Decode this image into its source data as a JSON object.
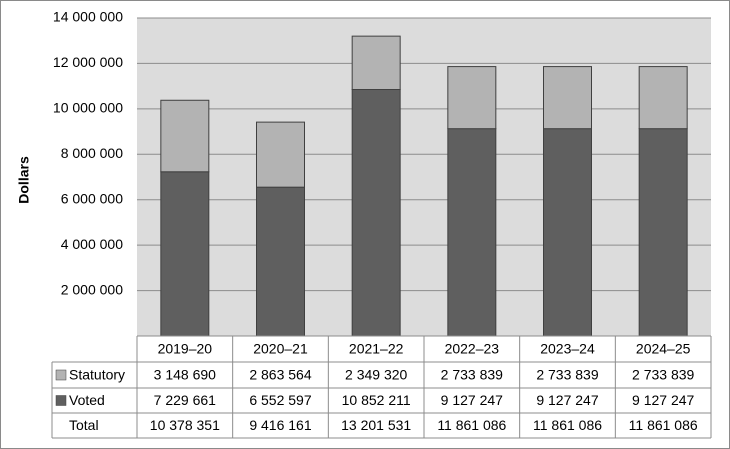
{
  "chart_data": {
    "type": "stacked-bar",
    "y_label": "Dollars",
    "categories": [
      "2019–20",
      "2020–21",
      "2021–22",
      "2022–23",
      "2023–24",
      "2024–25"
    ],
    "series": [
      {
        "name": "Statutory",
        "color": "#b3b3b3",
        "values": [
          3148690,
          2863564,
          2349320,
          2733839,
          2733839,
          2733839
        ],
        "value_labels": [
          "3 148 690",
          "2 863 564",
          "2 349 320",
          "2 733 839",
          "2 733 839",
          "2 733 839"
        ]
      },
      {
        "name": "Voted",
        "color": "#5f5f5f",
        "values": [
          7229661,
          6552597,
          10852211,
          9127247,
          9127247,
          9127247
        ],
        "value_labels": [
          "7 229 661",
          "6 552 597",
          "10 852 211",
          "9 127 247",
          "9 127 247",
          "9 127 247"
        ]
      }
    ],
    "total": {
      "name": "Total",
      "values": [
        10378351,
        9416161,
        13201531,
        11861086,
        11861086,
        11861086
      ],
      "value_labels": [
        "10 378 351",
        "9 416 161",
        "13 201 531",
        "11 861 086",
        "11 861 086",
        "11 861 086"
      ]
    },
    "ylim": [
      0,
      14000000
    ],
    "yticks": [
      {
        "value": 2000000,
        "label": "2 000 000"
      },
      {
        "value": 4000000,
        "label": "4 000 000"
      },
      {
        "value": 6000000,
        "label": "6 000 000"
      },
      {
        "value": 8000000,
        "label": "8 000 000"
      },
      {
        "value": 10000000,
        "label": "10 000 000"
      },
      {
        "value": 12000000,
        "label": "12 000 000"
      },
      {
        "value": 14000000,
        "label": "14 000 000"
      }
    ],
    "grid": true
  }
}
